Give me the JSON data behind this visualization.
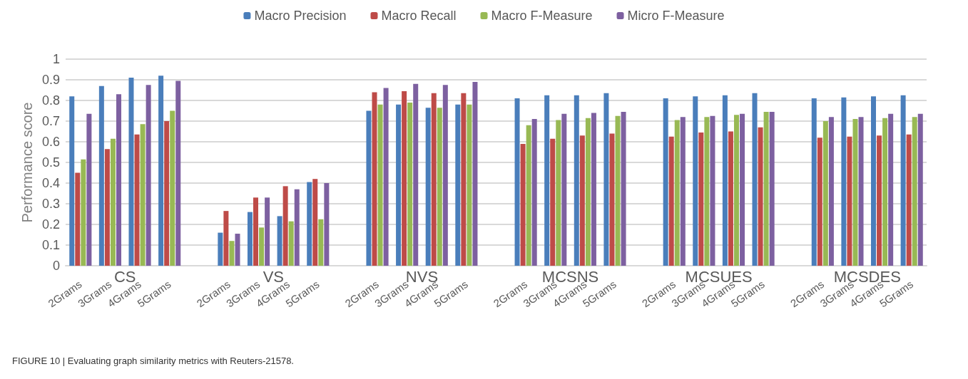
{
  "chart_data": {
    "type": "bar",
    "title": "FIGURE 10 | Evaluating graph similarity metrics with Reuters-21578.",
    "ylabel": "Performance score",
    "categories": [
      "2Grams",
      "3Grams",
      "4Grams",
      "5Grams",
      null,
      "2Grams",
      "3Grams",
      "4Grams",
      "5Grams",
      null,
      "2Grams",
      "3Grams",
      "4Grams",
      "5Grams",
      null,
      "2Grams",
      "3Grams",
      "4Grams",
      "5Grams",
      null,
      "2Grams",
      "3Grams",
      "4Grams",
      "5Grams",
      null,
      "2Grams",
      "3Grams",
      "4Grams",
      "5Grams"
    ],
    "annotations": [
      "CS",
      "VS",
      "NVS",
      "MCSNS",
      "MCSUES",
      "MCSDES"
    ],
    "series": [
      {
        "name": "Macro Precision",
        "color": "#4a7ebb",
        "values": [
          0.82,
          0.87,
          0.91,
          0.92,
          null,
          0.16,
          0.26,
          0.24,
          0.405,
          null,
          0.75,
          0.78,
          0.765,
          0.78,
          null,
          0.81,
          0.825,
          0.825,
          0.835,
          null,
          0.81,
          0.82,
          0.825,
          0.835,
          null,
          0.81,
          0.815,
          0.82,
          0.825
        ]
      },
      {
        "name": "Macro Recall",
        "color": "#be4b48",
        "values": [
          0.45,
          0.565,
          0.635,
          0.7,
          null,
          0.265,
          0.33,
          0.385,
          0.42,
          null,
          0.84,
          0.845,
          0.835,
          0.835,
          null,
          0.59,
          0.615,
          0.63,
          0.64,
          null,
          0.625,
          0.645,
          0.65,
          0.67,
          null,
          0.62,
          0.625,
          0.63,
          0.635
        ]
      },
      {
        "name": "Macro F-Measure",
        "color": "#98b954",
        "values": [
          0.515,
          0.615,
          0.685,
          0.75,
          null,
          0.12,
          0.185,
          0.215,
          0.225,
          null,
          0.78,
          0.79,
          0.765,
          0.78,
          null,
          0.68,
          0.705,
          0.715,
          0.725,
          null,
          0.705,
          0.72,
          0.73,
          0.745,
          null,
          0.7,
          0.71,
          0.715,
          0.72
        ]
      },
      {
        "name": "Micro F-Measure",
        "color": "#7d60a0",
        "values": [
          0.735,
          0.83,
          0.875,
          0.895,
          null,
          0.155,
          0.33,
          0.37,
          0.4,
          null,
          0.86,
          0.88,
          0.875,
          0.89,
          null,
          0.71,
          0.735,
          0.74,
          0.745,
          null,
          0.72,
          0.725,
          0.735,
          0.745,
          null,
          0.72,
          0.72,
          0.735,
          0.735
        ]
      }
    ],
    "ylim": [
      0,
      1
    ],
    "yticks": [
      0,
      0.1,
      0.2,
      0.3,
      0.4,
      0.5,
      0.6,
      0.7,
      0.8,
      0.9,
      1
    ],
    "grid": "y",
    "legend": "top"
  }
}
